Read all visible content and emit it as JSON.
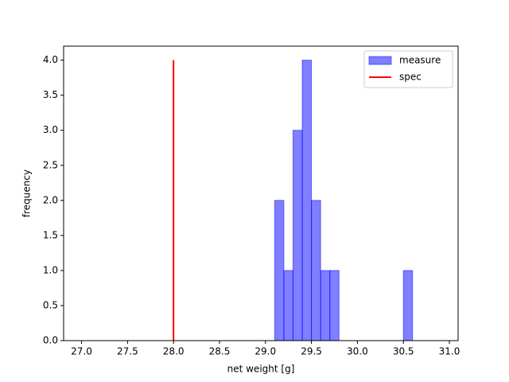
{
  "chart_data": {
    "type": "histogram",
    "xlabel": "net weight [g]",
    "ylabel": "frequency",
    "name": "measure",
    "color": "#0000ff",
    "bins": [
      27.0,
      27.1,
      27.2,
      27.3,
      27.4,
      27.5,
      27.6,
      27.7,
      27.8,
      27.9,
      28.0,
      28.1,
      28.2,
      28.3,
      28.4,
      28.5,
      28.6,
      28.7,
      28.8,
      28.9,
      29.0,
      29.1,
      29.2,
      29.3,
      29.4,
      29.5,
      29.6,
      29.7,
      29.8,
      29.9,
      30.0,
      30.1,
      30.2,
      30.3,
      30.4,
      30.5,
      30.6,
      30.7,
      30.8,
      30.9
    ],
    "counts": [
      0,
      0,
      0,
      0,
      0,
      0,
      0,
      0,
      0,
      0,
      0,
      0,
      0,
      0,
      0,
      0,
      0,
      0,
      0,
      0,
      0,
      2,
      1,
      3,
      4,
      2,
      1,
      1,
      0,
      0,
      0,
      0,
      0,
      0,
      0,
      1,
      0,
      0,
      0
    ],
    "lines": [
      {
        "name": "spec",
        "color": "#ff0000",
        "x": [
          28,
          28
        ],
        "y": [
          0,
          4
        ]
      }
    ],
    "xlim": [
      26.805,
      31.095
    ],
    "ylim": [
      0,
      4.2
    ],
    "xticks": [
      {
        "value": 27,
        "label": "27.0"
      },
      {
        "value": 27.5,
        "label": "27.5"
      },
      {
        "value": 28,
        "label": "28.0"
      },
      {
        "value": 28.5,
        "label": "28.5"
      },
      {
        "value": 29,
        "label": "29.0"
      },
      {
        "value": 29.5,
        "label": "29.5"
      },
      {
        "value": 30,
        "label": "30.0"
      },
      {
        "value": 30.5,
        "label": "30.5"
      },
      {
        "value": 31,
        "label": "31.0"
      }
    ],
    "yticks": [
      {
        "value": 0,
        "label": "0.0"
      },
      {
        "value": 0.5,
        "label": "0.5"
      },
      {
        "value": 1,
        "label": "1.0"
      },
      {
        "value": 1.5,
        "label": "1.5"
      },
      {
        "value": 2,
        "label": "2.0"
      },
      {
        "value": 2.5,
        "label": "2.5"
      },
      {
        "value": 3,
        "label": "3.0"
      },
      {
        "value": 3.5,
        "label": "3.5"
      },
      {
        "value": 4,
        "label": "4.0"
      }
    ],
    "legend": "upper right"
  }
}
